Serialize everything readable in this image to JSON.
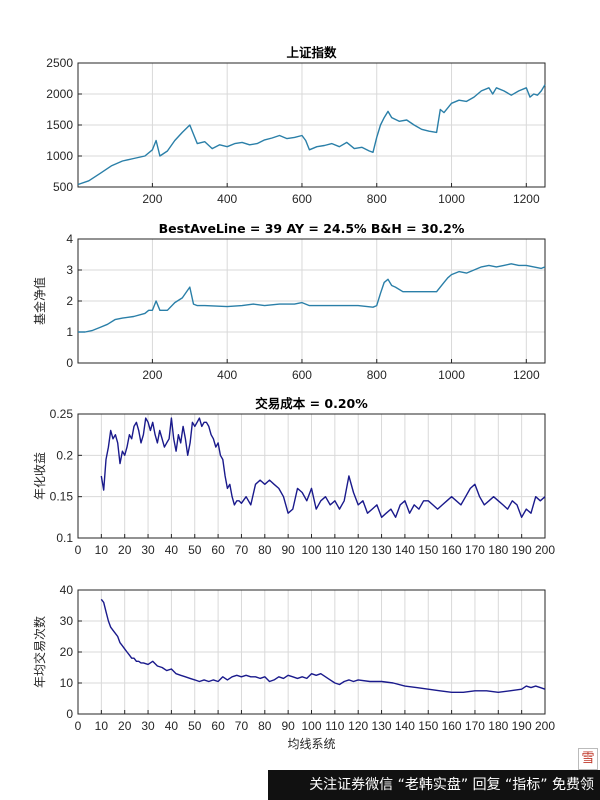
{
  "chart_data": [
    {
      "type": "line",
      "title": "上证指数",
      "xlabel": "",
      "ylabel": "",
      "xlim": [
        1,
        1250
      ],
      "ylim": [
        500,
        2500
      ],
      "xticks": [
        200,
        400,
        600,
        800,
        1000,
        1200
      ],
      "yticks": [
        500,
        1000,
        1500,
        2000,
        2500
      ],
      "grid": true,
      "color": "#2a7fa8",
      "series": [
        {
          "x": [
            1,
            30,
            60,
            90,
            120,
            150,
            180,
            200,
            210,
            220,
            240,
            260,
            280,
            300,
            310,
            320,
            340,
            360,
            380,
            400,
            420,
            440,
            460,
            480,
            500,
            520,
            540,
            560,
            580,
            600,
            610,
            620,
            640,
            660,
            680,
            700,
            720,
            740,
            760,
            780,
            790,
            800,
            810,
            820,
            830,
            840,
            860,
            880,
            900,
            920,
            940,
            960,
            970,
            980,
            1000,
            1020,
            1040,
            1060,
            1080,
            1100,
            1110,
            1120,
            1140,
            1160,
            1180,
            1200,
            1210,
            1220,
            1230,
            1240,
            1250
          ],
          "y": [
            540,
            600,
            720,
            840,
            920,
            960,
            1000,
            1100,
            1250,
            1000,
            1080,
            1250,
            1380,
            1500,
            1350,
            1200,
            1230,
            1120,
            1180,
            1150,
            1200,
            1220,
            1180,
            1200,
            1260,
            1290,
            1330,
            1280,
            1300,
            1330,
            1250,
            1100,
            1150,
            1170,
            1200,
            1150,
            1220,
            1120,
            1140,
            1080,
            1060,
            1300,
            1500,
            1620,
            1720,
            1620,
            1560,
            1580,
            1500,
            1430,
            1400,
            1380,
            1750,
            1700,
            1850,
            1900,
            1880,
            1950,
            2050,
            2100,
            2000,
            2100,
            2050,
            1980,
            2050,
            2100,
            1950,
            2000,
            1980,
            2050,
            2150
          ]
        }
      ]
    },
    {
      "type": "line",
      "title": "BestAveLine = 39   AY = 24.5%   B&H = 30.2%",
      "xlabel": "",
      "ylabel": "基金净值",
      "xlim": [
        1,
        1250
      ],
      "ylim": [
        0,
        4
      ],
      "xticks": [
        200,
        400,
        600,
        800,
        1000,
        1200
      ],
      "yticks": [
        0,
        1,
        2,
        3,
        4
      ],
      "grid": true,
      "color": "#2a7fa8",
      "series": [
        {
          "x": [
            1,
            20,
            40,
            60,
            80,
            100,
            120,
            150,
            180,
            190,
            200,
            210,
            220,
            240,
            260,
            280,
            300,
            310,
            320,
            340,
            400,
            440,
            470,
            500,
            540,
            580,
            600,
            620,
            650,
            700,
            750,
            790,
            800,
            810,
            820,
            830,
            840,
            850,
            870,
            900,
            930,
            960,
            980,
            990,
            1000,
            1020,
            1040,
            1060,
            1080,
            1100,
            1120,
            1140,
            1160,
            1180,
            1200,
            1220,
            1240,
            1250
          ],
          "y": [
            1.0,
            1.0,
            1.05,
            1.15,
            1.25,
            1.4,
            1.45,
            1.5,
            1.6,
            1.7,
            1.7,
            2.0,
            1.7,
            1.7,
            1.95,
            2.1,
            2.45,
            1.9,
            1.85,
            1.85,
            1.82,
            1.85,
            1.9,
            1.85,
            1.9,
            1.9,
            1.95,
            1.85,
            1.85,
            1.85,
            1.85,
            1.8,
            1.85,
            2.25,
            2.6,
            2.7,
            2.5,
            2.45,
            2.3,
            2.3,
            2.3,
            2.3,
            2.6,
            2.75,
            2.85,
            2.95,
            2.9,
            3.0,
            3.1,
            3.15,
            3.1,
            3.15,
            3.2,
            3.15,
            3.15,
            3.1,
            3.05,
            3.1
          ]
        }
      ]
    },
    {
      "type": "line",
      "title": "交易成本 = 0.20%",
      "xlabel": "",
      "ylabel": "年化收益",
      "xlim": [
        0,
        200
      ],
      "ylim": [
        0.1,
        0.25
      ],
      "xticks": [
        0,
        10,
        20,
        30,
        40,
        50,
        60,
        70,
        80,
        90,
        100,
        110,
        120,
        130,
        140,
        150,
        160,
        170,
        180,
        190,
        200
      ],
      "yticks": [
        0.1,
        0.15,
        0.2,
        0.25
      ],
      "grid": true,
      "color": "#1a1a8c",
      "series": [
        {
          "x": [
            10,
            11,
            12,
            13,
            14,
            15,
            16,
            17,
            18,
            19,
            20,
            21,
            22,
            23,
            24,
            25,
            26,
            27,
            28,
            29,
            30,
            31,
            32,
            33,
            34,
            35,
            36,
            37,
            38,
            39,
            40,
            41,
            42,
            43,
            44,
            45,
            46,
            47,
            48,
            49,
            50,
            51,
            52,
            53,
            54,
            55,
            56,
            57,
            58,
            59,
            60,
            61,
            62,
            63,
            64,
            65,
            66,
            67,
            68,
            69,
            70,
            72,
            74,
            76,
            78,
            80,
            82,
            84,
            86,
            88,
            90,
            92,
            94,
            96,
            98,
            100,
            102,
            104,
            106,
            108,
            110,
            112,
            114,
            116,
            118,
            120,
            122,
            124,
            126,
            128,
            130,
            132,
            134,
            136,
            138,
            140,
            142,
            144,
            146,
            148,
            150,
            152,
            154,
            156,
            158,
            160,
            162,
            164,
            166,
            168,
            170,
            172,
            174,
            176,
            178,
            180,
            182,
            184,
            186,
            188,
            190,
            192,
            194,
            196,
            198,
            200
          ],
          "y": [
            0.175,
            0.158,
            0.195,
            0.21,
            0.23,
            0.22,
            0.225,
            0.215,
            0.19,
            0.205,
            0.2,
            0.21,
            0.225,
            0.22,
            0.235,
            0.24,
            0.23,
            0.215,
            0.225,
            0.245,
            0.24,
            0.23,
            0.24,
            0.225,
            0.215,
            0.23,
            0.22,
            0.21,
            0.215,
            0.22,
            0.245,
            0.22,
            0.205,
            0.225,
            0.215,
            0.235,
            0.22,
            0.2,
            0.215,
            0.24,
            0.235,
            0.24,
            0.245,
            0.235,
            0.24,
            0.24,
            0.235,
            0.225,
            0.22,
            0.21,
            0.215,
            0.2,
            0.195,
            0.175,
            0.16,
            0.165,
            0.15,
            0.14,
            0.145,
            0.145,
            0.142,
            0.15,
            0.14,
            0.165,
            0.17,
            0.165,
            0.17,
            0.165,
            0.16,
            0.15,
            0.13,
            0.135,
            0.16,
            0.155,
            0.145,
            0.16,
            0.135,
            0.145,
            0.15,
            0.14,
            0.145,
            0.135,
            0.145,
            0.175,
            0.155,
            0.14,
            0.145,
            0.13,
            0.135,
            0.14,
            0.125,
            0.13,
            0.135,
            0.125,
            0.14,
            0.145,
            0.13,
            0.14,
            0.135,
            0.145,
            0.145,
            0.14,
            0.135,
            0.14,
            0.145,
            0.15,
            0.145,
            0.14,
            0.15,
            0.16,
            0.165,
            0.15,
            0.14,
            0.145,
            0.15,
            0.145,
            0.14,
            0.135,
            0.145,
            0.14,
            0.125,
            0.135,
            0.13,
            0.15,
            0.145,
            0.15
          ]
        }
      ]
    },
    {
      "type": "line",
      "title": "",
      "xlabel": "均线系统",
      "ylabel": "年均交易次数",
      "xlim": [
        0,
        200
      ],
      "ylim": [
        0,
        40
      ],
      "xticks": [
        0,
        10,
        20,
        30,
        40,
        50,
        60,
        70,
        80,
        90,
        100,
        110,
        120,
        130,
        140,
        150,
        160,
        170,
        180,
        190,
        200
      ],
      "yticks": [
        0,
        10,
        20,
        30,
        40
      ],
      "grid": true,
      "color": "#1a1a8c",
      "series": [
        {
          "x": [
            10,
            11,
            12,
            13,
            14,
            15,
            16,
            17,
            18,
            19,
            20,
            21,
            22,
            23,
            24,
            25,
            26,
            27,
            28,
            30,
            32,
            34,
            36,
            38,
            40,
            42,
            44,
            46,
            48,
            50,
            52,
            54,
            56,
            58,
            60,
            62,
            64,
            66,
            68,
            70,
            72,
            74,
            76,
            78,
            80,
            82,
            84,
            86,
            88,
            90,
            92,
            94,
            96,
            98,
            100,
            102,
            104,
            106,
            108,
            110,
            112,
            114,
            116,
            118,
            120,
            125,
            130,
            135,
            140,
            145,
            150,
            155,
            160,
            165,
            170,
            175,
            180,
            185,
            190,
            192,
            194,
            196,
            198,
            200
          ],
          "y": [
            37,
            36,
            33,
            30,
            28,
            27,
            26,
            25,
            23,
            22,
            21,
            20,
            19,
            18,
            18,
            17,
            17,
            16.5,
            16.5,
            16,
            17,
            15.5,
            15,
            14,
            14.5,
            13,
            12.5,
            12,
            11.5,
            11,
            10.5,
            11,
            10.5,
            11,
            10.5,
            12,
            11,
            12,
            12.5,
            12,
            12.5,
            12,
            12,
            11.5,
            12,
            10.5,
            11,
            12,
            11.5,
            12.5,
            12,
            11.5,
            12,
            11.5,
            13,
            12.5,
            13,
            12,
            11,
            10,
            9.5,
            10.5,
            11,
            10.5,
            11,
            10.5,
            10.5,
            10,
            9,
            8.5,
            8,
            7.5,
            7,
            7,
            7.5,
            7.5,
            7,
            7.5,
            8,
            9,
            8.5,
            9,
            8.5,
            8
          ]
        }
      ]
    }
  ],
  "watermark": {
    "text": "关注证券微信 “老韩实盘” 回复 “指标” 免费领",
    "logo": "雪"
  }
}
